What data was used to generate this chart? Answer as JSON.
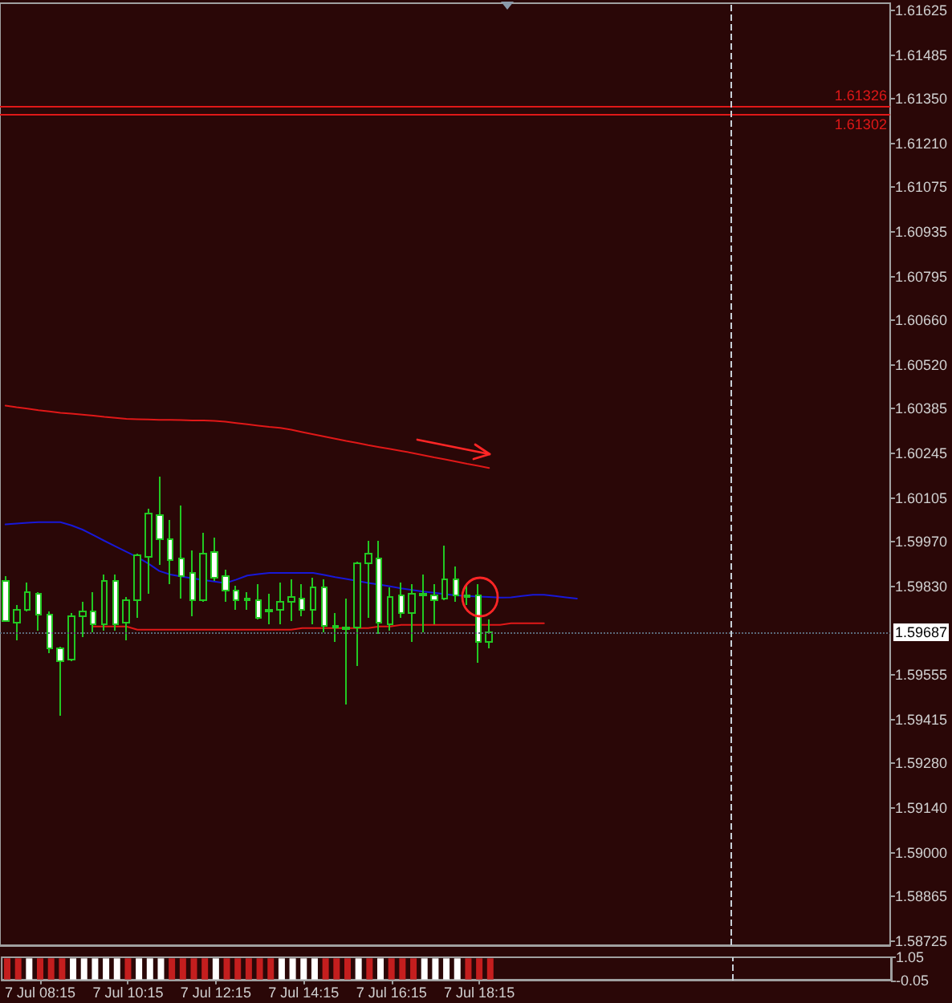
{
  "chart_data": [
    {
      "type": "candlestick",
      "color": "#22c822",
      "categories": [
        null,
        null,
        null,
        null,
        null,
        null,
        null,
        null,
        null,
        null,
        null,
        null,
        null,
        null,
        null,
        null,
        null,
        null,
        null,
        null,
        null,
        null,
        null,
        null,
        null,
        null,
        null,
        null,
        null,
        null,
        null,
        null,
        null,
        null,
        null,
        null,
        null,
        null,
        null,
        null,
        null,
        null,
        null,
        null,
        null,
        null,
        null,
        null,
        null,
        null,
        null,
        null,
        null,
        null,
        null,
        null,
        null,
        null,
        null,
        null,
        null,
        null,
        null,
        null,
        null,
        null,
        null,
        null,
        null,
        null,
        null,
        null,
        null,
        null,
        null,
        null,
        null,
        null,
        null,
        null,
        null
      ],
      "ohlc": [
        [
          1.59847,
          1.59862,
          1.59722,
          1.59722
        ],
        [
          1.59717,
          1.59772,
          1.59662,
          1.59757
        ],
        [
          1.59757,
          1.59842,
          1.59752,
          1.59812
        ],
        [
          1.59807,
          1.59812,
          1.59692,
          1.59742
        ],
        [
          1.59742,
          1.59752,
          1.59622,
          1.59637
        ],
        [
          1.59637,
          1.59642,
          1.59427,
          1.59597
        ],
        [
          1.59602,
          1.59747,
          1.59597,
          1.59737
        ],
        [
          1.59737,
          1.59782,
          1.59672,
          1.59752
        ],
        [
          1.59752,
          1.59812,
          1.59687,
          1.59712
        ],
        [
          1.59712,
          1.59867,
          1.59692,
          1.59847
        ],
        [
          1.59847,
          1.59867,
          1.59692,
          1.59712
        ],
        [
          1.59717,
          1.59797,
          1.59662,
          1.59787
        ],
        [
          1.59787,
          1.59932,
          1.59732,
          1.59927
        ],
        [
          1.59922,
          1.60072,
          1.59807,
          1.60057
        ],
        [
          1.60052,
          1.60172,
          1.59897,
          1.59977
        ],
        [
          1.59977,
          1.60037,
          1.59837,
          1.59912
        ],
        [
          1.59917,
          1.60082,
          1.59792,
          1.59862
        ],
        [
          1.59872,
          1.59942,
          1.59737,
          1.59787
        ],
        [
          1.59787,
          1.59997,
          1.59782,
          1.59932
        ],
        [
          1.59937,
          1.59982,
          1.59847,
          1.59857
        ],
        [
          1.59862,
          1.59882,
          1.59782,
          1.59817
        ],
        [
          1.59817,
          1.59832,
          1.59757,
          1.59787
        ],
        [
          1.59792,
          1.59812,
          1.59757,
          1.59787
        ],
        [
          1.59787,
          1.59837,
          1.59727,
          1.59732
        ],
        [
          1.59752,
          1.59807,
          1.59712,
          1.59757
        ],
        [
          1.59757,
          1.59842,
          1.59712,
          1.59782
        ],
        [
          1.59782,
          1.59852,
          1.59722,
          1.59797
        ],
        [
          1.59792,
          1.59837,
          1.59737,
          1.59757
        ],
        [
          1.59757,
          1.59857,
          1.59712,
          1.59827
        ],
        [
          1.59827,
          1.59852,
          1.59687,
          1.59707
        ],
        [
          1.59707,
          1.59747,
          1.59657,
          1.59702
        ],
        [
          1.59702,
          1.59792,
          1.59462,
          1.59697
        ],
        [
          1.59702,
          1.59907,
          1.59582,
          1.59902
        ],
        [
          1.59902,
          1.59972,
          1.59732,
          1.59932
        ],
        [
          1.59917,
          1.59972,
          1.59682,
          1.59717
        ],
        [
          1.59712,
          1.59827,
          1.59692,
          1.59797
        ],
        [
          1.59802,
          1.59842,
          1.59732,
          1.59747
        ],
        [
          1.59747,
          1.59837,
          1.59657,
          1.59807
        ],
        [
          1.59807,
          1.59867,
          1.59687,
          1.59802
        ],
        [
          1.59802,
          1.59837,
          1.59712,
          1.59787
        ],
        [
          1.59792,
          1.59957,
          1.59787,
          1.59852
        ],
        [
          1.59852,
          1.59892,
          1.59782,
          1.59802
        ],
        [
          1.59802,
          1.59832,
          1.59772,
          1.59797
        ],
        [
          1.59802,
          1.59837,
          1.59592,
          1.59657
        ],
        [
          1.59657,
          1.59727,
          1.59637,
          1.59687
        ],
        null,
        null,
        null,
        null,
        null,
        null,
        null,
        null,
        null,
        null,
        null,
        null,
        null,
        null,
        null,
        null,
        null,
        null,
        null,
        null,
        null,
        null,
        null,
        null,
        null,
        null,
        null,
        null,
        null,
        null,
        null,
        null,
        null,
        null,
        null,
        null
      ],
      "ylim": [
        1.58712,
        1.61647
      ],
      "yticks": [
        1.61625,
        1.61485,
        {
          "value": 1.6135,
          "label": "1.61350"
        },
        {
          "value": 1.6121,
          "label": "1.61210"
        },
        1.61075,
        1.60935,
        1.60795,
        {
          "value": 1.6066,
          "label": "1.60660"
        },
        {
          "value": 1.6052,
          "label": "1.60520"
        },
        1.60385,
        1.60245,
        1.60105,
        {
          "value": 1.5997,
          "label": "1.59970"
        },
        {
          "value": 1.5983,
          "label": "1.59830"
        },
        1.59555,
        1.59415,
        {
          "value": 1.5928,
          "label": "1.59280"
        },
        {
          "value": 1.5914,
          "label": "1.59140"
        },
        {
          "value": 1.59,
          "label": "1.59000"
        },
        1.58865,
        1.58725
      ],
      "tick_labels": "y",
      "series": [
        {
          "type": "line",
          "color": "#1818d8",
          "values": [
            1.60023,
            1.60026,
            1.60028,
            1.6003,
            1.6003,
            1.6003,
            1.6002,
            1.60007,
            1.5999,
            1.59972,
            1.59955,
            1.59938,
            1.59921,
            1.59901,
            1.59878,
            1.59867,
            1.59861,
            1.59855,
            1.5985,
            1.59845,
            1.5984,
            1.59851,
            1.59864,
            1.59868,
            1.59872,
            1.59872,
            1.59872,
            1.59872,
            1.59872,
            1.59866,
            1.59859,
            1.59853,
            1.59847,
            1.59841,
            1.59836,
            1.5983,
            1.59824,
            1.59819,
            1.59814,
            1.5981,
            1.59806,
            1.59802,
            1.598,
            1.59798,
            1.59797,
            1.59795,
            1.59796,
            1.598,
            1.59804,
            1.59804,
            1.598,
            1.59796,
            1.59792,
            null,
            null,
            null,
            null,
            null,
            null,
            null,
            null,
            null,
            null,
            null,
            null,
            null,
            null,
            null,
            null,
            null,
            null,
            null,
            null,
            null,
            null,
            null,
            null,
            null,
            null,
            null,
            null
          ]
        },
        {
          "type": "line",
          "color": "#e01818",
          "values": [
            null,
            null,
            null,
            null,
            null,
            null,
            null,
            null,
            1.59705,
            1.59705,
            1.59705,
            1.59705,
            1.59695,
            1.59695,
            1.59695,
            1.59695,
            1.59695,
            1.59695,
            1.59695,
            1.59695,
            1.59695,
            1.59695,
            1.59695,
            1.59695,
            1.59695,
            1.59695,
            1.59695,
            1.597,
            1.597,
            1.597,
            1.597,
            1.597,
            1.597,
            1.597,
            1.59705,
            1.59705,
            1.5971,
            1.5971,
            1.5971,
            1.5971,
            1.5971,
            1.5971,
            1.5971,
            1.5971,
            1.5971,
            1.5971,
            1.59715,
            1.59715,
            1.59715,
            1.59715,
            null,
            null,
            null,
            null,
            null,
            null,
            null,
            null,
            null,
            null,
            null,
            null,
            null,
            null,
            null,
            null,
            null,
            null,
            null,
            null,
            null,
            null,
            null,
            null,
            null,
            null,
            null,
            null,
            null,
            null,
            null
          ]
        },
        {
          "type": "line",
          "color": "#e01818",
          "values": [
            1.60393,
            1.60388,
            1.60384,
            1.60379,
            1.60375,
            1.60371,
            1.60368,
            1.60365,
            1.60362,
            1.60358,
            1.60355,
            1.60352,
            1.60351,
            1.6035,
            1.60349,
            1.60349,
            1.60348,
            1.60347,
            1.60347,
            1.60346,
            1.60343,
            1.60339,
            1.60335,
            1.60331,
            1.60327,
            1.60324,
            1.60318,
            1.60311,
            1.60304,
            1.60297,
            1.6029,
            1.60283,
            1.60277,
            1.6027,
            1.60264,
            1.60258,
            1.60252,
            1.60246,
            1.60239,
            1.60232,
            1.60226,
            1.60219,
            1.60212,
            1.60206,
            1.60199,
            null,
            null,
            null,
            null,
            null,
            null,
            null,
            null,
            null,
            null,
            null,
            null,
            null,
            null,
            null,
            null,
            null,
            null,
            null,
            null,
            null,
            null,
            null,
            null,
            null,
            null,
            null,
            null,
            null,
            null,
            null,
            null,
            null,
            null,
            null,
            null
          ]
        }
      ],
      "ref_lines": [
        {
          "axis": "y",
          "value": 1.61326,
          "label": "1.61326",
          "color": "#e01818"
        },
        {
          "axis": "y",
          "value": 1.61302,
          "label": "1.61302",
          "color": "#e01818"
        },
        {
          "axis": "y",
          "value": 1.59687,
          "label": "1.59687",
          "color": "#5a6878",
          "line_style": "dotted"
        }
      ]
    },
    {
      "type": "bar",
      "categories": [
        null,
        null,
        null,
        "7 Jul 08:15",
        null,
        null,
        null,
        null,
        null,
        null,
        null,
        "7 Jul 10:15",
        null,
        null,
        null,
        null,
        null,
        null,
        null,
        "7 Jul 12:15",
        null,
        null,
        null,
        null,
        null,
        null,
        null,
        "7 Jul 14:15",
        null,
        null,
        null,
        null,
        null,
        null,
        null,
        "7 Jul 16:15",
        null,
        null,
        null,
        null,
        null,
        null,
        null,
        "7 Jul 18:15",
        null,
        null,
        null,
        null,
        null,
        null,
        null,
        null,
        null,
        null,
        null,
        null,
        null,
        null,
        null,
        null,
        null,
        null,
        null,
        null,
        null,
        null,
        null,
        null,
        null,
        null,
        null,
        null,
        null,
        null,
        null,
        null,
        null,
        null,
        null,
        null,
        null
      ],
      "values": [
        1,
        1,
        1,
        1,
        1,
        1,
        1,
        1,
        1,
        1,
        1,
        1,
        1,
        1,
        1,
        1,
        1,
        1,
        1,
        1,
        1,
        1,
        1,
        1,
        1,
        1,
        1,
        1,
        1,
        1,
        1,
        1,
        1,
        1,
        1,
        1,
        1,
        1,
        1,
        1,
        1,
        1,
        1,
        1,
        1,
        null,
        null,
        null,
        null,
        null,
        null,
        null,
        null,
        null,
        null,
        null,
        null,
        null,
        null,
        null,
        null,
        null,
        null,
        null,
        null,
        null,
        null,
        null,
        null,
        null,
        null,
        null,
        null,
        null,
        null,
        null,
        null,
        null,
        null,
        null,
        null
      ],
      "colors": [
        "#c41e1e",
        "#c41e1e",
        "#ffffff",
        "#c41e1e",
        "#c41e1e",
        "#c41e1e",
        "#ffffff",
        "#ffffff",
        "#ffffff",
        "#ffffff",
        "#ffffff",
        "#c41e1e",
        "#ffffff",
        "#ffffff",
        "#ffffff",
        "#c41e1e",
        "#c41e1e",
        "#c41e1e",
        "#c41e1e",
        "#ffffff",
        "#c41e1e",
        "#c41e1e",
        "#c41e1e",
        "#c41e1e",
        "#c41e1e",
        "#ffffff",
        "#ffffff",
        "#ffffff",
        "#ffffff",
        "#c41e1e",
        "#c41e1e",
        "#c41e1e",
        "#ffffff",
        "#c41e1e",
        "#ffffff",
        "#c41e1e",
        "#c41e1e",
        "#c41e1e",
        "#ffffff",
        "#ffffff",
        "#ffffff",
        "#ffffff",
        "#c41e1e",
        "#c41e1e",
        "#c41e1e",
        null,
        null,
        null,
        null,
        null,
        null,
        null,
        null,
        null,
        null,
        null,
        null,
        null,
        null,
        null,
        null,
        null,
        null,
        null,
        null,
        null,
        null,
        null,
        null,
        null,
        null,
        null,
        null,
        null,
        null,
        null,
        null,
        null,
        null,
        null,
        null
      ],
      "ylim": [
        -0.05,
        1.05
      ],
      "yticks": [
        1.05,
        -0.05
      ]
    }
  ]
}
